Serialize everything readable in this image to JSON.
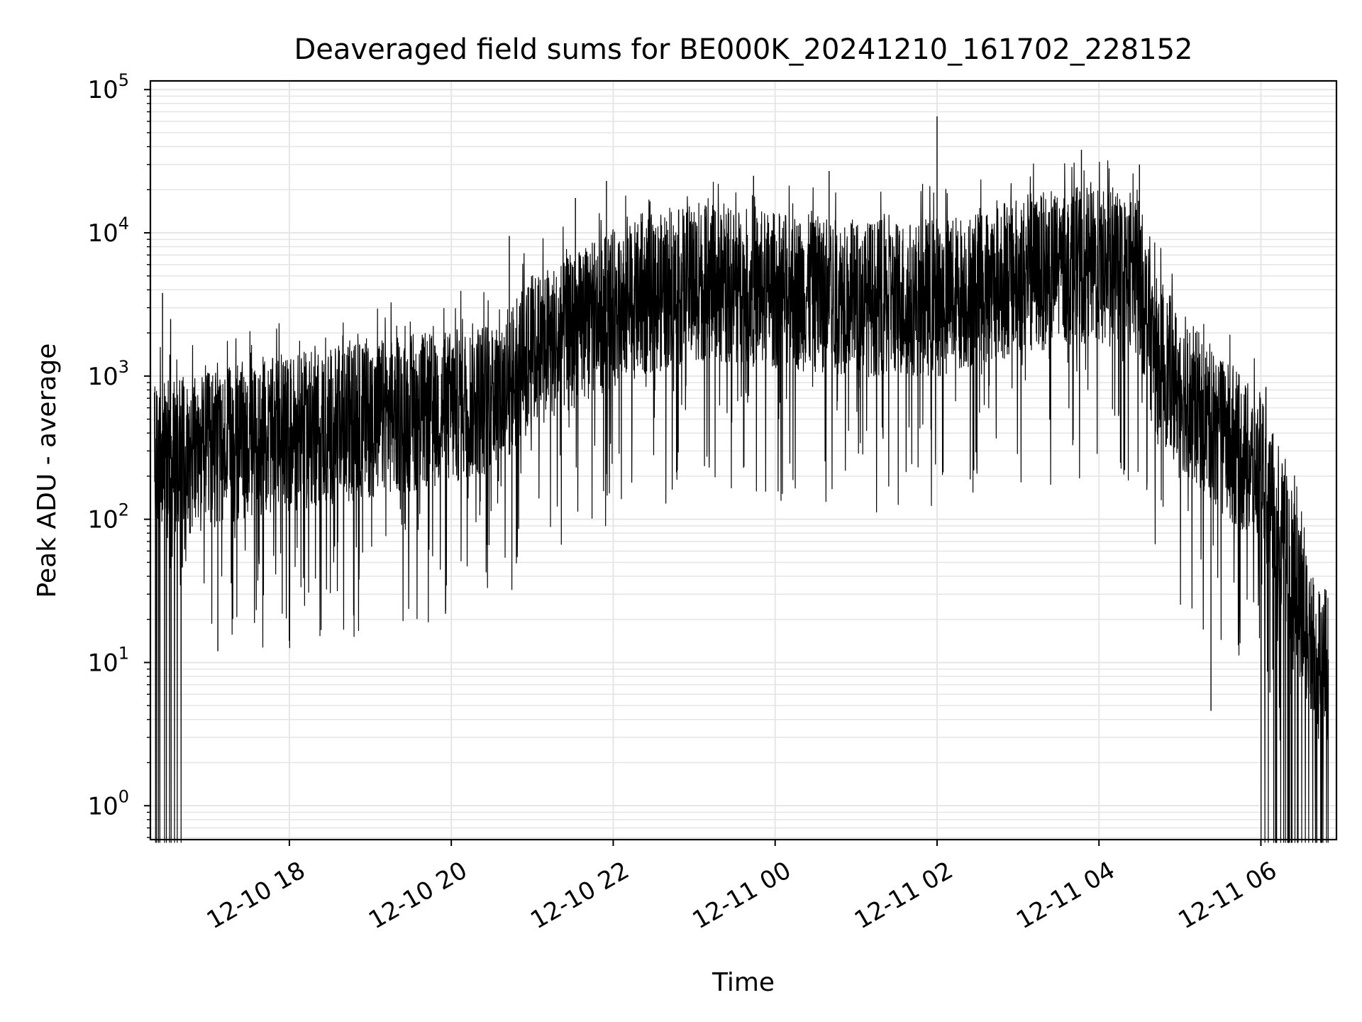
{
  "chart_data": {
    "type": "line",
    "title": "Deaveraged field sums for BE000K_20241210_161702_228152",
    "xlabel": "Time",
    "ylabel": "Peak ADU - average",
    "yscale": "log",
    "grid": true,
    "grid_minor": true,
    "legend": false,
    "line_color": "#000000",
    "grid_color": "#e6e6e6",
    "xlim": [
      "2024-12-10 16:17",
      "2024-12-11 06:56"
    ],
    "ylim": [
      0.58,
      115000
    ],
    "xticks": [
      {
        "t": "2024-12-10 18:00",
        "label": "12-10 18"
      },
      {
        "t": "2024-12-10 20:00",
        "label": "12-10 20"
      },
      {
        "t": "2024-12-10 22:00",
        "label": "12-10 22"
      },
      {
        "t": "2024-12-11 00:00",
        "label": "12-11 00"
      },
      {
        "t": "2024-12-11 02:00",
        "label": "12-11 02"
      },
      {
        "t": "2024-12-11 04:00",
        "label": "12-11 04"
      },
      {
        "t": "2024-12-11 06:00",
        "label": "12-11 06"
      }
    ],
    "yticks": [
      {
        "v": 1,
        "base": "10",
        "exp": "0"
      },
      {
        "v": 10,
        "base": "10",
        "exp": "1"
      },
      {
        "v": 100,
        "base": "10",
        "exp": "2"
      },
      {
        "v": 1000,
        "base": "10",
        "exp": "3"
      },
      {
        "v": 10000,
        "base": "10",
        "exp": "4"
      },
      {
        "v": 100000,
        "base": "10",
        "exp": "5"
      }
    ],
    "envelope": [
      {
        "t": "2024-12-10 16:20",
        "v": 250
      },
      {
        "t": "2024-12-10 17:00",
        "v": 300
      },
      {
        "t": "2024-12-10 18:00",
        "v": 400
      },
      {
        "t": "2024-12-10 19:00",
        "v": 500
      },
      {
        "t": "2024-12-10 20:00",
        "v": 600
      },
      {
        "t": "2024-12-10 20:40",
        "v": 800
      },
      {
        "t": "2024-12-10 21:00",
        "v": 1500
      },
      {
        "t": "2024-12-10 21:30",
        "v": 2000
      },
      {
        "t": "2024-12-10 22:00",
        "v": 3000
      },
      {
        "t": "2024-12-10 23:00",
        "v": 4500
      },
      {
        "t": "2024-12-11 00:00",
        "v": 4000
      },
      {
        "t": "2024-12-11 01:00",
        "v": 3500
      },
      {
        "t": "2024-12-11 02:00",
        "v": 3500
      },
      {
        "t": "2024-12-11 03:00",
        "v": 5000
      },
      {
        "t": "2024-12-11 03:45",
        "v": 6000
      },
      {
        "t": "2024-12-11 04:30",
        "v": 5000
      },
      {
        "t": "2024-12-11 04:40",
        "v": 1500
      },
      {
        "t": "2024-12-11 05:00",
        "v": 800
      },
      {
        "t": "2024-12-11 05:30",
        "v": 400
      },
      {
        "t": "2024-12-11 06:00",
        "v": 200
      },
      {
        "t": "2024-12-11 06:20",
        "v": 60
      },
      {
        "t": "2024-12-11 06:40",
        "v": 10
      }
    ],
    "notable_points": [
      {
        "t": "2024-12-10 16:26",
        "v": 3800
      },
      {
        "t": "2024-12-10 16:32",
        "v": 2500
      },
      {
        "t": "2024-12-10 17:07",
        "v": 12
      },
      {
        "t": "2024-12-10 20:43",
        "v": 9500
      },
      {
        "t": "2024-12-10 21:32",
        "v": 17500
      },
      {
        "t": "2024-12-10 21:55",
        "v": 23000
      },
      {
        "t": "2024-12-10 23:44",
        "v": 25000
      },
      {
        "t": "2024-12-11 00:40",
        "v": 27000
      },
      {
        "t": "2024-12-11 02:00",
        "v": 65000
      },
      {
        "t": "2024-12-11 03:47",
        "v": 38000
      },
      {
        "t": "2024-12-11 04:30",
        "v": 30000
      },
      {
        "t": "2024-12-11 05:23",
        "v": 4.6
      }
    ]
  }
}
